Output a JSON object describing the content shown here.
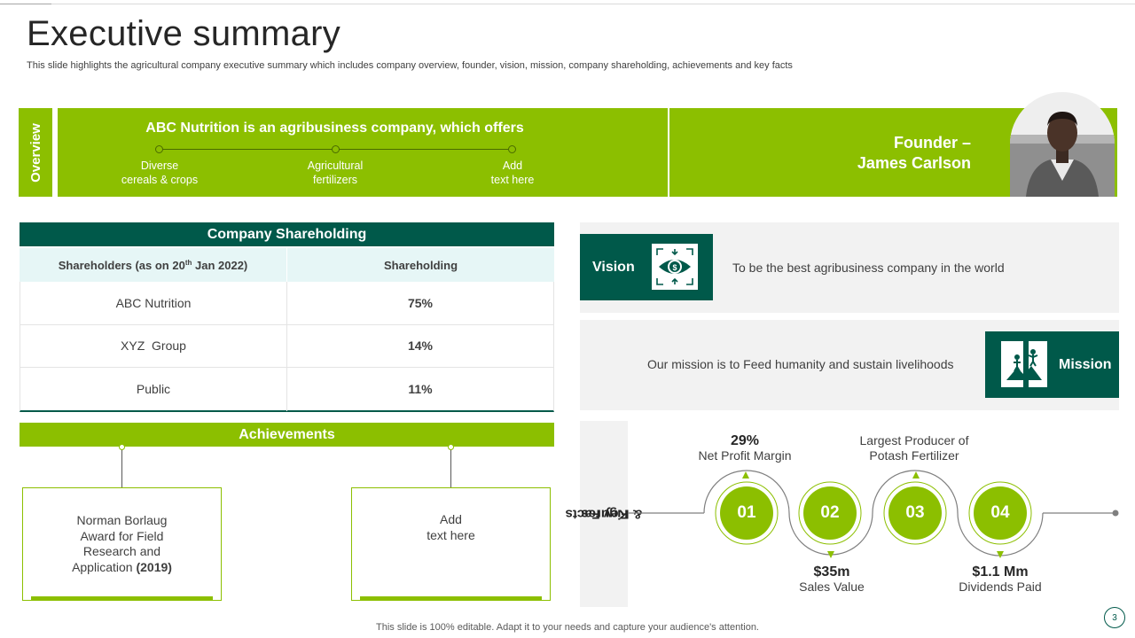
{
  "header": {
    "title": "Executive summary",
    "subtitle": "This slide highlights the agricultural company executive summary which includes company overview, founder, vision, mission, company shareholding, achievements and key facts"
  },
  "overview": {
    "label": "Overview",
    "heading": "ABC Nutrition is an agribusiness company, which offers",
    "items": [
      {
        "line1": "Diverse",
        "line2": "cereals & crops"
      },
      {
        "line1": "Agricultural",
        "line2": "fertilizers"
      },
      {
        "line1": "Add",
        "line2": "text here"
      }
    ]
  },
  "founder": {
    "line1": "Founder –",
    "line2": "James Carlson"
  },
  "shareholding": {
    "title": "Company Shareholding",
    "col1_prefix": "Shareholders (as on 20",
    "col1_sup": "th",
    "col1_suffix": " Jan 2022)",
    "col2": "Shareholding",
    "rows": [
      {
        "name": "ABC Nutrition",
        "value": "75%"
      },
      {
        "name": "XYZ  Group",
        "value": "14%"
      },
      {
        "name": "Public",
        "value": "11%"
      }
    ]
  },
  "achievements": {
    "title": "Achievements",
    "box1": {
      "l1": "Norman Borlaug",
      "l2": "Award for Field",
      "l3": "Research and",
      "l4": "Application ",
      "year": "(2019)"
    },
    "box2": {
      "l1": "Add",
      "l2": "text here"
    }
  },
  "vision": {
    "label": "Vision",
    "text": "To be the best agribusiness company in the world",
    "icon": "eye-dollar-icon"
  },
  "mission": {
    "label": "Mission",
    "text": "Our mission is to Feed humanity and sustain livelihoods",
    "icon": "people-climb-icon"
  },
  "key_facts": {
    "label_line1": "Key Facts",
    "label_line2": "& Figures",
    "steps": [
      "01",
      "02",
      "03",
      "04"
    ],
    "fact1": {
      "value": "29%",
      "label": "Net Profit Margin"
    },
    "fact2": {
      "value": "$35m",
      "label": "Sales Value"
    },
    "fact3": {
      "line1": "Largest Producer of",
      "line2": "Potash Fertilizer"
    },
    "fact4": {
      "value": "$1.1 Mm",
      "label": "Dividends Paid"
    }
  },
  "footer": {
    "note": "This slide is 100% editable. Adapt it to your needs and capture your audience's attention.",
    "page": "3"
  },
  "colors": {
    "green": "#8cbf00",
    "dark_teal": "#00594a",
    "light_panel": "#f2f2f2",
    "table_head": "#e6f6f6"
  }
}
